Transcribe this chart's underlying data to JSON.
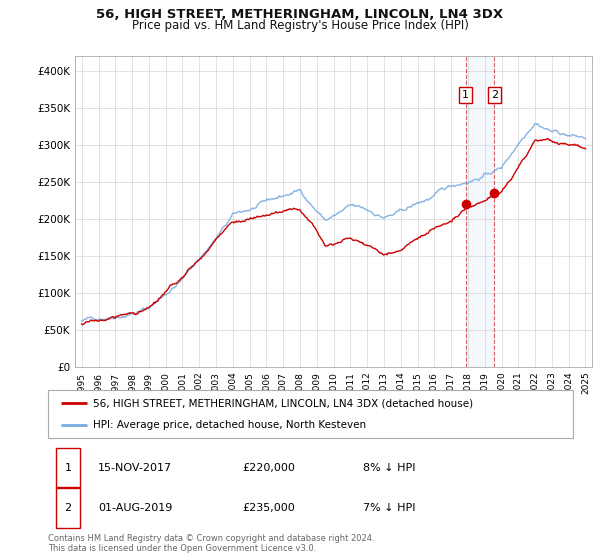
{
  "title": "56, HIGH STREET, METHERINGHAM, LINCOLN, LN4 3DX",
  "subtitle": "Price paid vs. HM Land Registry's House Price Index (HPI)",
  "legend_entry1": "56, HIGH STREET, METHERINGHAM, LINCOLN, LN4 3DX (detached house)",
  "legend_entry2": "HPI: Average price, detached house, North Kesteven",
  "annotation1_date": "15-NOV-2017",
  "annotation1_price": "£220,000",
  "annotation1_hpi": "8% ↓ HPI",
  "annotation2_date": "01-AUG-2019",
  "annotation2_price": "£235,000",
  "annotation2_hpi": "7% ↓ HPI",
  "footer": "Contains HM Land Registry data © Crown copyright and database right 2024.\nThis data is licensed under the Open Government Licence v3.0.",
  "red_color": "#cc0000",
  "blue_color": "#7aabe0",
  "ylim_max": 420000,
  "yticks": [
    0,
    50000,
    100000,
    150000,
    200000,
    250000,
    300000,
    350000,
    400000
  ],
  "ytick_labels": [
    "£0",
    "£50K",
    "£100K",
    "£150K",
    "£200K",
    "£250K",
    "£300K",
    "£350K",
    "£400K"
  ],
  "sale1_x": 2017.87,
  "sale1_y": 220000,
  "sale2_x": 2019.58,
  "sale2_y": 235000,
  "vline1_x": 2017.87,
  "vline2_x": 2019.58,
  "xmin": 1994.6,
  "xmax": 2025.4
}
